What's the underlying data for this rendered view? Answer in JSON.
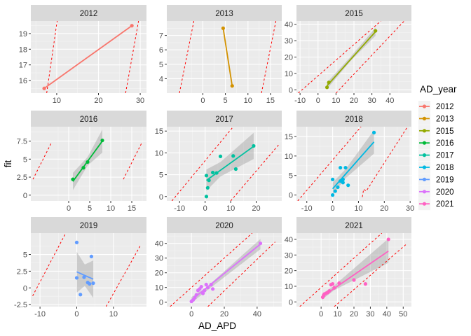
{
  "chart_data": {
    "type": "scatter",
    "xlabel": "AD_APD",
    "ylabel": "fit",
    "legend": {
      "title": "AD_year",
      "placement": "right",
      "entries": [
        {
          "label": "2012",
          "color": "#F8766D"
        },
        {
          "label": "2013",
          "color": "#D39200"
        },
        {
          "label": "2015",
          "color": "#93AA00"
        },
        {
          "label": "2016",
          "color": "#00BA38"
        },
        {
          "label": "2017",
          "color": "#00C19F"
        },
        {
          "label": "2018",
          "color": "#00B9E3"
        },
        {
          "label": "2019",
          "color": "#619CFF"
        },
        {
          "label": "2020",
          "color": "#DB72FB"
        },
        {
          "label": "2021",
          "color": "#FF61C3"
        }
      ]
    },
    "panels": [
      {
        "title": "2012",
        "color": "#F8766D",
        "xlim": [
          3.8,
          31.5
        ],
        "ylim": [
          15.2,
          19.8
        ],
        "xticks": [
          10,
          20,
          30
        ],
        "yticks": [
          16,
          17,
          18,
          19
        ],
        "points": [
          [
            7,
            15.5
          ],
          [
            28,
            19.5
          ]
        ],
        "fit": [
          [
            7,
            15.5
          ],
          [
            28,
            19.5
          ]
        ],
        "band": null,
        "pred_upper": [
          [
            7.6,
            15.2
          ],
          [
            10.1,
            19.8
          ]
        ],
        "pred_lower": [
          [
            26.5,
            15.2
          ],
          [
            29.6,
            19.8
          ]
        ]
      },
      {
        "title": "2013",
        "color": "#D39200",
        "xlim": [
          -8,
          17.5
        ],
        "ylim": [
          3.0,
          8.0
        ],
        "xticks": [
          0,
          5,
          10,
          15
        ],
        "yticks": [
          4,
          5,
          6,
          7
        ],
        "points": [
          [
            4.5,
            7.5
          ],
          [
            6.5,
            3.5
          ]
        ],
        "fit": [
          [
            4.5,
            7.5
          ],
          [
            6.5,
            3.5
          ]
        ],
        "band": null,
        "pred_upper": [
          [
            -5.2,
            3.0
          ],
          [
            -2.0,
            8.0
          ]
        ],
        "pred_lower": [
          [
            13.0,
            3.0
          ],
          [
            16.2,
            8.0
          ]
        ]
      },
      {
        "title": "2015",
        "color": "#93AA00",
        "xlim": [
          -12,
          52
        ],
        "ylim": [
          -2,
          42
        ],
        "xticks": [
          -10,
          0,
          10,
          20,
          30,
          40
        ],
        "yticks": [
          0,
          10,
          20,
          30,
          40
        ],
        "points": [
          [
            5,
            1.5
          ],
          [
            6,
            4.5
          ],
          [
            32,
            36
          ]
        ],
        "fit": [
          [
            5,
            2.5
          ],
          [
            32,
            35.5
          ]
        ],
        "band": [
          [
            5,
            0.5,
            4.5
          ],
          [
            18,
            17.5,
            20
          ],
          [
            32,
            33,
            38
          ]
        ],
        "pred_upper": [
          [
            -11,
            -2
          ],
          [
            35,
            42
          ]
        ],
        "pred_lower": [
          [
            10,
            -2
          ],
          [
            48,
            42
          ]
        ]
      },
      {
        "title": "2016",
        "color": "#00BA38",
        "xlim": [
          -9,
          18.5
        ],
        "ylim": [
          -0.8,
          9.5
        ],
        "xticks": [
          0,
          5,
          10,
          15
        ],
        "yticks": [
          0.0,
          2.5,
          5.0,
          7.5
        ],
        "points": [
          [
            1,
            2.2
          ],
          [
            3.5,
            3.8
          ],
          [
            4.5,
            4.6
          ],
          [
            8,
            7.6
          ]
        ],
        "fit": [
          [
            1,
            1.9
          ],
          [
            8,
            7.5
          ]
        ],
        "band": [
          [
            1,
            0.7,
            3.1
          ],
          [
            4.5,
            4.1,
            5.3
          ],
          [
            8,
            5.9,
            9.1
          ]
        ],
        "pred_upper": [
          [
            -8.5,
            2.2
          ],
          [
            -4.0,
            7.4
          ]
        ],
        "pred_lower": [
          [
            13.0,
            2.2
          ],
          [
            17.5,
            7.4
          ]
        ]
      },
      {
        "title": "2017",
        "color": "#00C19F",
        "xlim": [
          -15,
          30
        ],
        "ylim": [
          -1,
          16
        ],
        "xticks": [
          -10,
          0,
          10,
          20
        ],
        "yticks": [
          0,
          5,
          10,
          15
        ],
        "points": [
          [
            0.5,
            0
          ],
          [
            0.5,
            4.8
          ],
          [
            1,
            2
          ],
          [
            1.5,
            3.7
          ],
          [
            3,
            5.5
          ],
          [
            4.5,
            5.4
          ],
          [
            6,
            9.2
          ],
          [
            11,
            9.3
          ],
          [
            12,
            6.3
          ],
          [
            19,
            11.6
          ]
        ],
        "fit": [
          [
            0.5,
            3.7
          ],
          [
            19,
            11.5
          ]
        ],
        "band": [
          [
            0.5,
            1.3,
            6.2
          ],
          [
            6,
            4.6,
            7.9
          ],
          [
            19,
            8.6,
            14.6
          ]
        ],
        "pred_upper": [
          [
            -13,
            -1
          ],
          [
            11,
            16
          ]
        ],
        "pred_lower": [
          [
            10,
            -1
          ],
          [
            29,
            12
          ]
        ]
      },
      {
        "title": "2018",
        "color": "#00B9E3",
        "xlim": [
          -14,
          30.5
        ],
        "ylim": [
          -1.5,
          17.5
        ],
        "xticks": [
          -10,
          0,
          10,
          20,
          30
        ],
        "yticks": [
          0,
          5,
          10,
          15
        ],
        "points": [
          [
            0,
            0
          ],
          [
            0,
            4
          ],
          [
            1,
            1
          ],
          [
            2,
            2
          ],
          [
            3,
            3.6
          ],
          [
            3,
            7
          ],
          [
            4,
            4
          ],
          [
            4,
            3.2
          ],
          [
            5,
            7
          ],
          [
            6,
            2.5
          ],
          [
            16,
            16
          ]
        ],
        "fit": [
          [
            0,
            1.6
          ],
          [
            16,
            13.6
          ]
        ],
        "band": [
          [
            0,
            0,
            3.2
          ],
          [
            5,
            4.3,
            6.6
          ],
          [
            16,
            10.6,
            16.6
          ]
        ],
        "pred_upper": [
          [
            -13.5,
            -1.5
          ],
          [
            11,
            17.5
          ]
        ],
        "pred_lower": [
          [
            11.5,
            -0.5
          ],
          [
            12,
            1.5
          ],
          [
            13,
            1.0
          ],
          [
            29,
            17.5
          ]
        ]
      },
      {
        "title": "2019",
        "color": "#619CFF",
        "xlim": [
          -12.5,
          19
        ],
        "ylim": [
          -2.8,
          8.2
        ],
        "xticks": [
          -10,
          0,
          10
        ],
        "yticks": [
          -2.5,
          0.0,
          2.5,
          5.0
        ],
        "points": [
          [
            0,
            6.8
          ],
          [
            0,
            1.5
          ],
          [
            1,
            -1
          ],
          [
            2,
            1.6
          ],
          [
            3,
            0.8
          ],
          [
            3.5,
            0.6
          ],
          [
            4,
            4.7
          ],
          [
            4.5,
            0.7
          ]
        ],
        "fit": [
          [
            0,
            2.4
          ],
          [
            4.5,
            1.3
          ]
        ],
        "band": [
          [
            0,
            -0.7,
            5.4
          ],
          [
            2.2,
            0.3,
            3.5
          ],
          [
            4.5,
            -1.5,
            4.1
          ]
        ],
        "pred_upper": [
          [
            -12,
            -1.2
          ],
          [
            -3,
            8.2
          ]
        ],
        "pred_lower": [
          [
            8,
            -2.8
          ],
          [
            17.5,
            6.5
          ]
        ]
      },
      {
        "title": "2020",
        "color": "#DB72FB",
        "xlim": [
          -15,
          55
        ],
        "ylim": [
          -3,
          47
        ],
        "xticks": [
          0,
          20,
          40
        ],
        "yticks": [
          0,
          10,
          20,
          30,
          40
        ],
        "points": [
          [
            0,
            0.5
          ],
          [
            1,
            1.5
          ],
          [
            2,
            3
          ],
          [
            3,
            5
          ],
          [
            4,
            8
          ],
          [
            5,
            9
          ],
          [
            6,
            10.5
          ],
          [
            7,
            6
          ],
          [
            8,
            8
          ],
          [
            9,
            12
          ],
          [
            10,
            10
          ],
          [
            12,
            12
          ],
          [
            13,
            9
          ],
          [
            42,
            40
          ]
        ],
        "fit": [
          [
            0,
            1.5
          ],
          [
            42,
            39.5
          ]
        ],
        "band": [
          [
            0,
            -0.5,
            3.5
          ],
          [
            9,
            7.5,
            10
          ],
          [
            42,
            36,
            43
          ]
        ],
        "pred_upper": [
          [
            -13,
            -3
          ],
          [
            37,
            47
          ]
        ],
        "pred_lower": [
          [
            10,
            -3
          ],
          [
            51,
            41
          ]
        ]
      },
      {
        "title": "2021",
        "color": "#FF61C3",
        "xlim": [
          -15,
          55
        ],
        "ylim": [
          -3,
          44
        ],
        "xticks": [
          0,
          10,
          20,
          30,
          40,
          50
        ],
        "yticks": [
          0,
          10,
          20,
          30,
          40
        ],
        "points": [
          [
            1,
            3
          ],
          [
            1.5,
            4
          ],
          [
            2,
            5
          ],
          [
            3,
            5.5
          ],
          [
            4,
            6
          ],
          [
            5,
            7
          ],
          [
            6,
            11
          ],
          [
            7,
            11.5
          ],
          [
            8,
            9
          ],
          [
            11,
            12
          ],
          [
            20,
            14
          ],
          [
            27,
            11.5
          ],
          [
            41,
            40
          ]
        ],
        "fit": [
          [
            0.5,
            3.2
          ],
          [
            41,
            32.5
          ]
        ],
        "band": [
          [
            0.5,
            1.5,
            5
          ],
          [
            8,
            7.5,
            10.5
          ],
          [
            41,
            25,
            40.5
          ]
        ],
        "pred_upper": [
          [
            -13,
            -3
          ],
          [
            37,
            44
          ]
        ],
        "pred_lower": [
          [
            8,
            -3
          ],
          [
            52,
            37
          ]
        ]
      }
    ]
  }
}
